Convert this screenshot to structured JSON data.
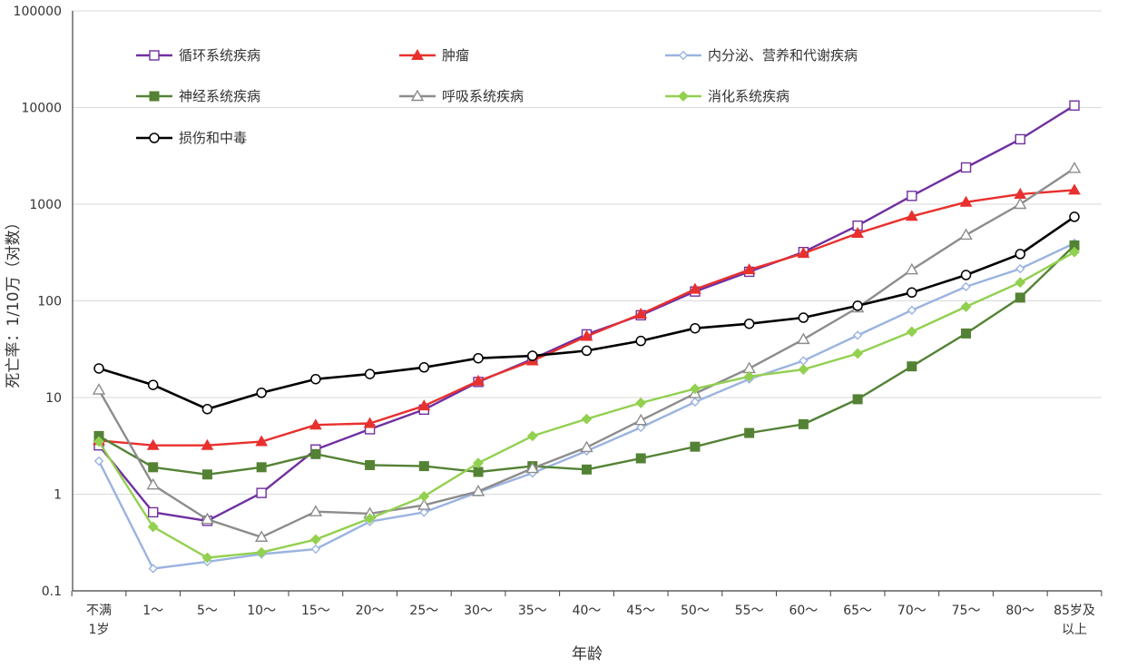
{
  "chart_data": {
    "type": "line",
    "xlabel": "年龄",
    "ylabel": "死亡率：1/10万（对数）",
    "yscale": "log",
    "ylim": [
      0.1,
      100000
    ],
    "yticks": [
      "0.1",
      "1",
      "10",
      "100",
      "1000",
      "10000",
      "100000"
    ],
    "grid": "horizontal",
    "legend_position": "top-left",
    "categories": [
      [
        "不满",
        "1岁"
      ],
      [
        "1～"
      ],
      [
        "5～"
      ],
      [
        "10～"
      ],
      [
        "15～"
      ],
      [
        "20～"
      ],
      [
        "25～"
      ],
      [
        "30～"
      ],
      [
        "35～"
      ],
      [
        "40～"
      ],
      [
        "45～"
      ],
      [
        "50～"
      ],
      [
        "55～"
      ],
      [
        "60～"
      ],
      [
        "65～"
      ],
      [
        "70～"
      ],
      [
        "75～"
      ],
      [
        "80～"
      ],
      [
        "85岁及",
        "以上"
      ]
    ],
    "series": [
      {
        "name": "循环系统疾病",
        "color": "#7030A0",
        "marker": "square-open",
        "values": [
          3.2,
          0.65,
          0.53,
          1.03,
          2.9,
          4.7,
          7.5,
          14.5,
          25,
          45,
          71,
          125,
          200,
          320,
          600,
          1220,
          2400,
          4700,
          10500
        ]
      },
      {
        "name": "肿瘤",
        "color": "#E8302E",
        "marker": "triangle-filled",
        "values": [
          3.6,
          3.2,
          3.2,
          3.5,
          5.2,
          5.4,
          8.2,
          14.8,
          24,
          43,
          73,
          132,
          210,
          310,
          500,
          750,
          1050,
          1270,
          1400
        ]
      },
      {
        "name": "内分泌、营养和代谢疾病",
        "color": "#9BB3E0",
        "marker": "diamond-open",
        "values": [
          2.2,
          0.17,
          0.2,
          0.24,
          0.27,
          0.52,
          0.65,
          1.05,
          1.65,
          2.8,
          4.9,
          9,
          15.5,
          24,
          44,
          80,
          140,
          215,
          395
        ]
      },
      {
        "name": "神经系统疾病",
        "color": "#548235",
        "marker": "square-filled",
        "values": [
          4.0,
          1.9,
          1.6,
          1.9,
          2.6,
          2.0,
          1.95,
          1.7,
          1.95,
          1.8,
          2.35,
          3.1,
          4.3,
          5.3,
          9.6,
          21,
          46,
          108,
          375
        ]
      },
      {
        "name": "呼吸系统疾病",
        "color": "#8C8C8C",
        "marker": "triangle-open",
        "values": [
          12,
          1.25,
          0.55,
          0.36,
          0.66,
          0.63,
          0.77,
          1.07,
          1.85,
          3.05,
          5.8,
          11,
          20,
          40,
          85,
          210,
          480,
          1000,
          2350
        ]
      },
      {
        "name": "消化系统疾病",
        "color": "#92D050",
        "marker": "diamond-filled",
        "values": [
          3.5,
          0.46,
          0.22,
          0.25,
          0.34,
          0.56,
          0.95,
          2.1,
          4,
          6,
          8.8,
          12.3,
          16.5,
          19.5,
          28.5,
          48,
          87,
          155,
          320
        ]
      },
      {
        "name": "损伤和中毒",
        "color": "#000000",
        "marker": "circle-open",
        "values": [
          20,
          13.5,
          7.6,
          11.2,
          15.5,
          17.5,
          20.5,
          25.5,
          27,
          30.5,
          38.5,
          52,
          58,
          67,
          89,
          122,
          185,
          305,
          740
        ]
      }
    ]
  }
}
